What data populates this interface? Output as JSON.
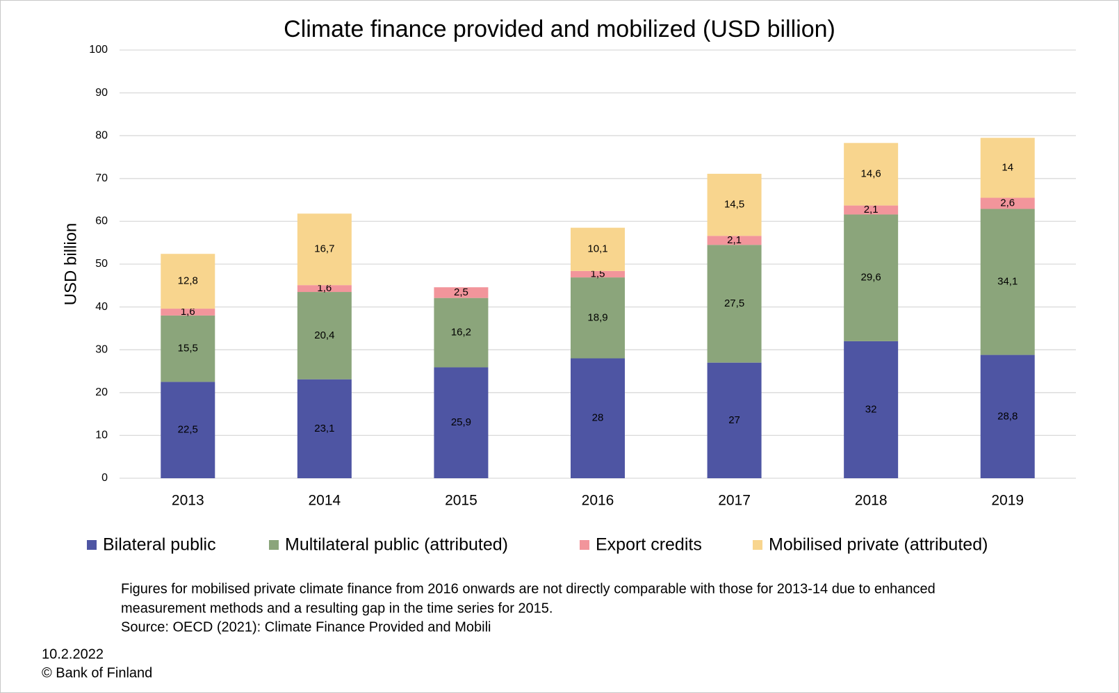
{
  "chart_data": {
    "type": "stacked_bar",
    "title": "Climate finance provided and mobilized (USD billion)",
    "y_label": "USD billion",
    "categories": [
      "2013",
      "2014",
      "2015",
      "2016",
      "2017",
      "2018",
      "2019"
    ],
    "series": [
      {
        "name": "Bilateral public",
        "color": "#4e55a3",
        "values": [
          22.5,
          23.1,
          25.9,
          28,
          27,
          32,
          28.8
        ],
        "value_labels": [
          "22,5",
          "23,1",
          "25,9",
          "28",
          "27",
          "32",
          "28,8"
        ]
      },
      {
        "name": "Multilateral public (attributed)",
        "color": "#8ba57b",
        "values": [
          15.5,
          20.4,
          16.2,
          18.9,
          27.5,
          29.6,
          34.1
        ],
        "value_labels": [
          "15,5",
          "20,4",
          "16,2",
          "18,9",
          "27,5",
          "29,6",
          "34,1"
        ]
      },
      {
        "name": "Export credits",
        "color": "#f2959b",
        "values": [
          1.6,
          1.6,
          2.5,
          1.5,
          2.1,
          2.1,
          2.6
        ],
        "value_labels": [
          "1,6",
          "1,6",
          "2,5",
          "1,5",
          "2,1",
          "2,1",
          "2,6"
        ]
      },
      {
        "name": "Mobilised private (attributed)",
        "color": "#f8d58e",
        "values": [
          12.8,
          16.7,
          null,
          10.1,
          14.5,
          14.6,
          14
        ],
        "value_labels": [
          "12,8",
          "16,7",
          null,
          "10,1",
          "14,5",
          "14,6",
          "14"
        ]
      }
    ],
    "ylim": [
      0,
      100
    ],
    "yticks": [
      0,
      10,
      20,
      30,
      40,
      50,
      60,
      70,
      80,
      90,
      100
    ],
    "grid": true,
    "legend": "bottom",
    "notes": [
      "Figures for mobilised private climate finance from 2016 onwards are not directly comparable with those for 2013-14 due to enhanced",
      "measurement methods and a resulting gap in the time series for 2015.",
      "Source: OECD (2021): Climate Finance Provided and Mobili"
    ],
    "date": "10.2.2022",
    "copyright": "© Bank of Finland"
  }
}
